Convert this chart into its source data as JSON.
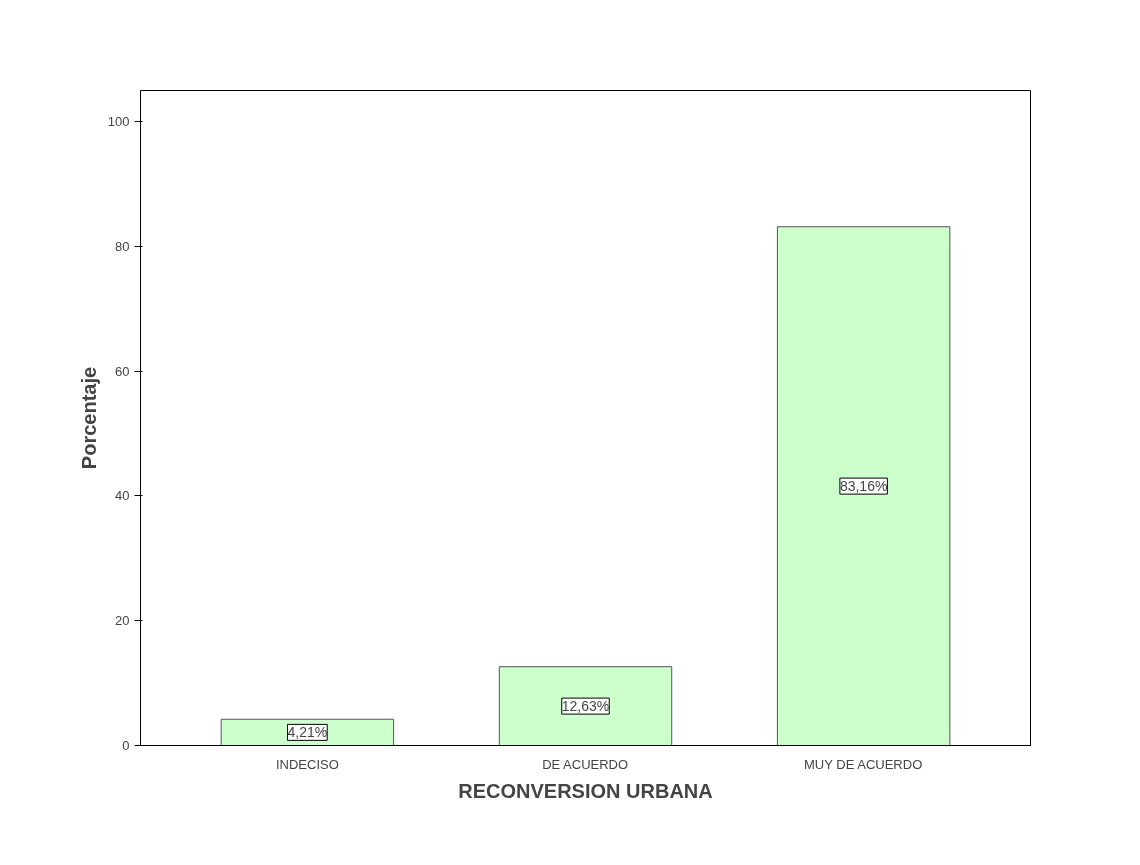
{
  "chart_data": {
    "type": "bar",
    "xlabel": "RECONVERSION URBANA",
    "ylabel": "Porcentaje",
    "categories": [
      "INDECISO",
      "DE ACUERDO",
      "MUY DE ACUERDO"
    ],
    "values": [
      4.21,
      12.63,
      83.16
    ],
    "value_labels": [
      "4,21%",
      "12,63%",
      "83,16%"
    ],
    "color": "#ccffcc",
    "ylim": [
      0,
      105
    ],
    "yticks": [
      0,
      20,
      40,
      60,
      80,
      100
    ],
    "grid": false
  }
}
